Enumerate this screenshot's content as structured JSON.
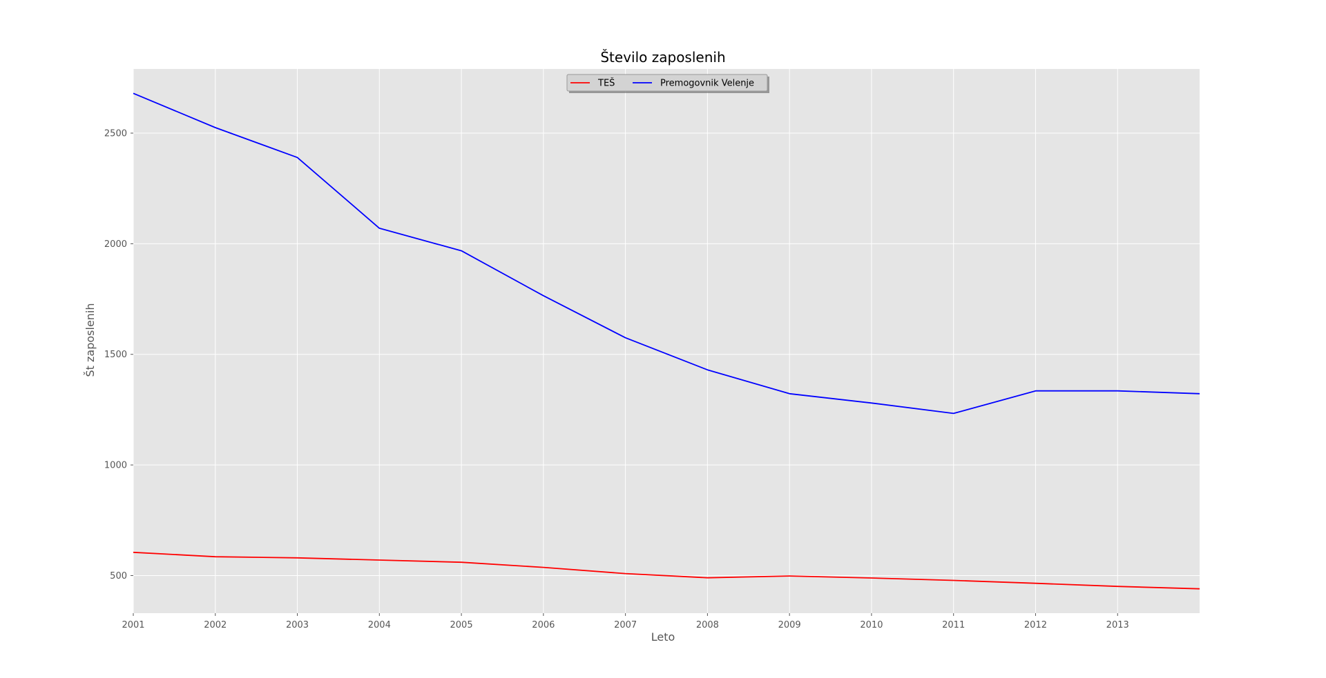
{
  "chart_data": {
    "type": "line",
    "title": "Število zaposlenih",
    "xlabel": "Leto",
    "ylabel": "Št zaposlenih",
    "x": [
      2001,
      2002,
      2003,
      2004,
      2005,
      2006,
      2007,
      2008,
      2009,
      2010,
      2011,
      2012,
      2013,
      2014
    ],
    "x_ticks": [
      "2001",
      "2002",
      "2003",
      "2004",
      "2005",
      "2006",
      "2007",
      "2008",
      "2009",
      "2010",
      "2011",
      "2012",
      "2013"
    ],
    "y_ticks": [
      "500",
      "1000",
      "1500",
      "2000",
      "2500"
    ],
    "xlim": [
      2001,
      2014
    ],
    "ylim": [
      330,
      2790
    ],
    "grid": true,
    "legend_position": "top-center",
    "background_color": "#e5e5e5",
    "grid_color": "#ffffff",
    "series": [
      {
        "name": "TEŠ",
        "color": "#ff0000",
        "values": [
          605,
          585,
          580,
          570,
          560,
          537,
          509,
          490,
          498,
          489,
          478,
          465,
          451,
          440
        ]
      },
      {
        "name": "Premogovnik Velenje",
        "color": "#0000ff",
        "values": [
          2680,
          2525,
          2390,
          2070,
          1968,
          1765,
          1575,
          1430,
          1322,
          1280,
          1233,
          1335,
          1335,
          1322
        ]
      }
    ]
  }
}
